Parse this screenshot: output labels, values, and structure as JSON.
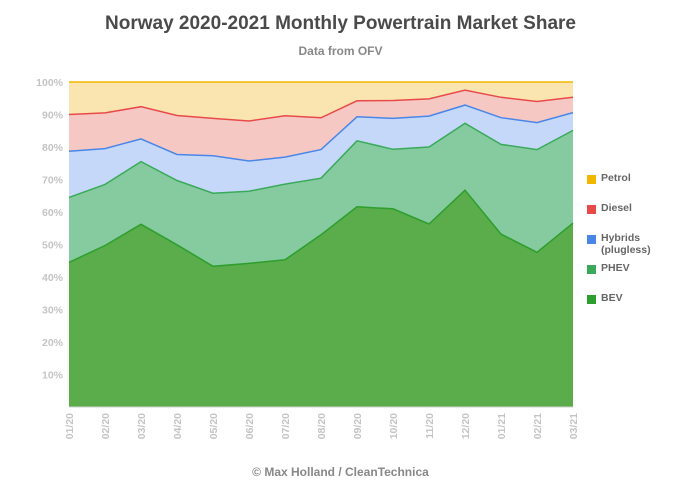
{
  "chart_data": {
    "type": "area",
    "stacked": true,
    "title": "Norway 2020-2021 Monthly Powertrain Market Share",
    "subtitle": "Data from OFV",
    "credit": "© Max Holland / CleanTechnica",
    "categories": [
      "01/20",
      "02/20",
      "03/20",
      "04/20",
      "05/20",
      "06/20",
      "07/20",
      "08/20",
      "09/20",
      "10/20",
      "11/20",
      "12/20",
      "01/21",
      "02/21",
      "03/21"
    ],
    "ylim": [
      0,
      100
    ],
    "yticks": [
      "10%",
      "20%",
      "30%",
      "40%",
      "50%",
      "60%",
      "70%",
      "80%",
      "90%",
      "100%"
    ],
    "grid": true,
    "legend_position": "right",
    "series": [
      {
        "name": "BEV",
        "color": "#2e9e2e",
        "fill": "#5aad4a",
        "values": [
          44.5,
          49.7,
          56.2,
          49.9,
          43.3,
          44.2,
          45.3,
          53.0,
          61.6,
          61.0,
          56.3,
          66.7,
          53.2,
          47.6,
          56.6
        ]
      },
      {
        "name": "PHEV",
        "color": "#3aaa5a",
        "fill": "#86cba0",
        "values": [
          20.0,
          18.8,
          19.3,
          19.8,
          22.5,
          22.2,
          23.3,
          17.4,
          20.3,
          18.3,
          23.7,
          20.6,
          27.6,
          31.6,
          28.5
        ]
      },
      {
        "name": "Hybrids (plugless)",
        "color": "#4a86e8",
        "fill": "#c6d8fa",
        "values": [
          14.2,
          11.0,
          7.0,
          8.0,
          11.5,
          9.3,
          8.3,
          8.8,
          7.4,
          9.5,
          9.5,
          5.6,
          8.2,
          8.3,
          5.5
        ]
      },
      {
        "name": "Diesel",
        "color": "#e84a4a",
        "fill": "#f5c8c4",
        "values": [
          11.3,
          11.0,
          9.9,
          12.0,
          11.5,
          12.3,
          12.7,
          9.8,
          4.9,
          5.5,
          5.3,
          4.6,
          6.3,
          6.5,
          4.7
        ]
      },
      {
        "name": "Petrol",
        "color": "#f2b800",
        "fill": "#fae5b0",
        "values": [
          10.0,
          9.5,
          7.6,
          10.3,
          11.2,
          12.0,
          10.4,
          11.0,
          5.8,
          5.7,
          5.2,
          2.5,
          4.7,
          6.0,
          4.7
        ]
      }
    ],
    "legend_order": [
      "Petrol",
      "Diesel",
      "Hybrids (plugless)",
      "PHEV",
      "BEV"
    ]
  }
}
